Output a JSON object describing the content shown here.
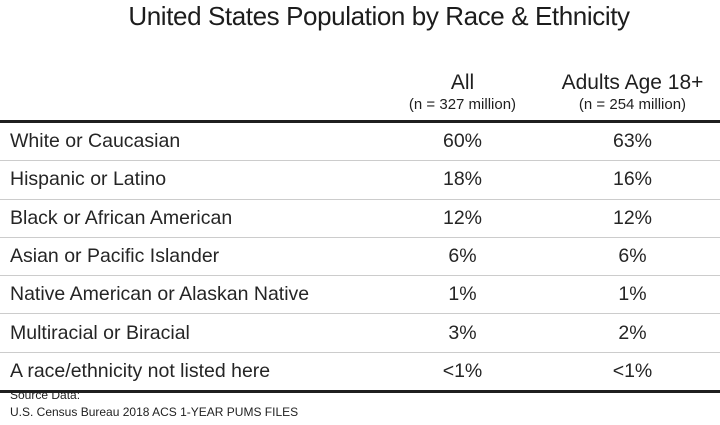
{
  "title": "United States Population by Race & Ethnicity",
  "table": {
    "columns": [
      {
        "label": "All",
        "sublabel": "(n = 327 million)"
      },
      {
        "label": "Adults Age 18+",
        "sublabel": "(n = 254 million)"
      }
    ],
    "rows": [
      {
        "label": "White or Caucasian",
        "all": "60%",
        "adults": "63%"
      },
      {
        "label": "Hispanic or Latino",
        "all": "18%",
        "adults": "16%"
      },
      {
        "label": "Black or African American",
        "all": "12%",
        "adults": "12%"
      },
      {
        "label": "Asian or Pacific Islander",
        "all": "6%",
        "adults": "6%"
      },
      {
        "label": "Native American or Alaskan Native",
        "all": "1%",
        "adults": "1%"
      },
      {
        "label": "Multiracial or Biracial",
        "all": "3%",
        "adults": "2%"
      },
      {
        "label": "A race/ethnicity not listed here",
        "all": "<1%",
        "adults": "<1%"
      }
    ]
  },
  "footer": {
    "line1": "Source Data:",
    "line2": "U.S. Census Bureau 2018 ACS 1-YEAR PUMS FILES"
  },
  "colors": {
    "text": "#212121",
    "rule_heavy": "#1f1f1f",
    "rule_light": "#cccccc",
    "background": "#ffffff"
  },
  "chart_data": {
    "type": "table",
    "title": "United States Population by Race & Ethnicity",
    "columns": [
      "",
      "All (n = 327 million)",
      "Adults Age 18+ (n = 254 million)"
    ],
    "categories": [
      "White or Caucasian",
      "Hispanic or Latino",
      "Black or African American",
      "Asian or Pacific Islander",
      "Native American or Alaskan Native",
      "Multiracial or Biracial",
      "A race/ethnicity not listed here"
    ],
    "series": [
      {
        "name": "All (n = 327 million)",
        "values": [
          "60%",
          "18%",
          "12%",
          "6%",
          "1%",
          "3%",
          "<1%"
        ]
      },
      {
        "name": "Adults Age 18+ (n = 254 million)",
        "values": [
          "63%",
          "16%",
          "12%",
          "6%",
          "1%",
          "2%",
          "<1%"
        ]
      }
    ],
    "source": "U.S. Census Bureau 2018 ACS 1-YEAR PUMS FILES",
    "layout": {
      "grid": "horizontal-rules-only",
      "header_position": "top",
      "value_alignment": "center"
    }
  }
}
